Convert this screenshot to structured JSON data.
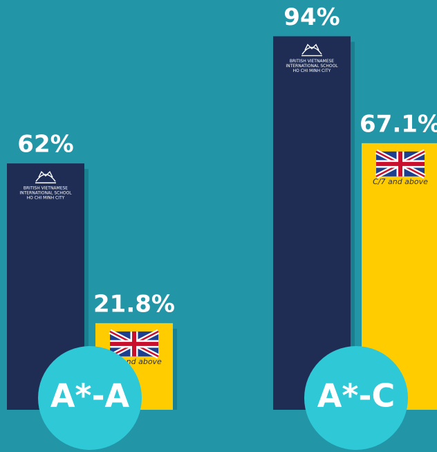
{
  "chart_data": {
    "type": "bar",
    "categories": [
      "A*-A",
      "A*-C"
    ],
    "series": [
      {
        "color": "#1f2d55",
        "values": [
          62,
          94
        ],
        "value_labels": [
          "62%",
          "94%"
        ],
        "logo_text": [
          "BRITISH VIETNAMESE",
          "INTERNATIONAL SCHOOL",
          "HO CHI MINH CITY"
        ]
      },
      {
        "color": "#ffcc00",
        "values": [
          21.8,
          67.1
        ],
        "value_labels": [
          "21.8%",
          "67.1%"
        ],
        "bar_labels": [
          "A/7 and above",
          "C/7 and above"
        ]
      }
    ],
    "ylim": [
      0,
      100
    ]
  }
}
